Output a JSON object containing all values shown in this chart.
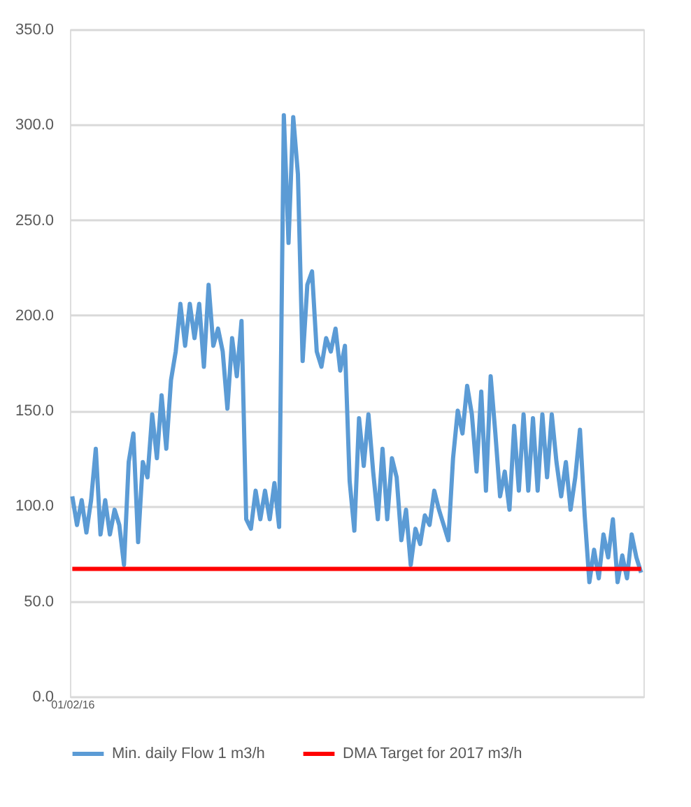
{
  "chart_data": {
    "type": "line",
    "categories": [
      "01/02/16",
      null,
      null,
      null,
      null,
      null,
      null,
      null,
      null,
      null,
      null,
      null,
      null,
      null,
      null,
      null,
      null,
      null,
      null,
      null,
      null,
      null,
      null,
      null,
      null,
      null,
      null,
      null,
      null,
      null,
      null,
      null,
      null,
      null,
      null,
      null,
      null,
      null,
      null,
      null,
      null,
      null,
      null,
      null,
      null,
      null,
      null,
      null,
      null,
      null,
      null,
      null,
      null,
      null,
      null,
      null,
      null,
      null,
      null,
      null,
      null,
      null,
      null,
      null,
      null,
      null,
      null,
      null,
      null,
      null,
      null,
      null,
      null,
      null,
      null,
      null,
      null,
      null,
      null,
      null,
      null,
      null,
      null,
      null,
      null,
      null,
      null,
      null,
      null,
      null,
      null,
      null,
      null,
      null,
      null,
      null,
      null,
      null,
      null,
      null,
      null,
      null,
      null,
      null,
      null,
      null,
      null,
      null,
      null,
      null,
      null,
      null,
      null,
      null,
      null,
      null,
      null,
      null,
      null,
      null,
      null,
      null
    ],
    "series": [
      {
        "name": "Min. daily Flow 1 m3/h",
        "color": "#5b9bd5",
        "values": [
          105,
          90,
          103,
          86,
          103,
          130,
          85,
          103,
          85,
          98,
          90,
          69,
          123,
          138,
          81,
          123,
          115,
          148,
          125,
          158,
          130,
          166,
          181,
          206,
          184,
          206,
          188,
          206,
          173,
          216,
          184,
          193,
          181,
          151,
          188,
          168,
          197,
          93,
          88,
          108,
          93,
          108,
          93,
          112,
          89,
          305,
          238,
          304,
          274,
          176,
          216,
          223,
          181,
          173,
          188,
          181,
          193,
          171,
          184,
          113,
          87,
          146,
          121,
          148,
          118,
          93,
          130,
          93,
          125,
          115,
          82,
          98,
          69,
          88,
          80,
          95,
          90,
          108,
          98,
          90,
          82,
          125,
          150,
          138,
          163,
          148,
          118,
          160,
          108,
          168,
          138,
          105,
          118,
          98,
          142,
          108,
          148,
          108,
          146,
          108,
          148,
          115,
          148,
          123,
          105,
          123,
          98,
          115,
          140,
          95,
          60,
          77,
          62,
          85,
          73,
          93,
          60,
          74,
          62,
          85,
          73,
          65
        ]
      },
      {
        "name": "DMA Target for 2017 m3/h",
        "color": "#ff0000",
        "values": [
          67,
          67,
          67,
          67,
          67,
          67,
          67,
          67,
          67,
          67,
          67,
          67,
          67,
          67,
          67,
          67,
          67,
          67,
          67,
          67,
          67,
          67,
          67,
          67,
          67,
          67,
          67,
          67,
          67,
          67,
          67,
          67,
          67,
          67,
          67,
          67,
          67,
          67,
          67,
          67,
          67,
          67,
          67,
          67,
          67,
          67,
          67,
          67,
          67,
          67,
          67,
          67,
          67,
          67,
          67,
          67,
          67,
          67,
          67,
          67,
          67,
          67,
          67,
          67,
          67,
          67,
          67,
          67,
          67,
          67,
          67,
          67,
          67,
          67,
          67,
          67,
          67,
          67,
          67,
          67,
          67,
          67,
          67,
          67,
          67,
          67,
          67,
          67,
          67,
          67,
          67,
          67,
          67,
          67,
          67,
          67,
          67,
          67,
          67,
          67,
          67,
          67,
          67,
          67,
          67,
          67,
          67,
          67,
          67,
          67,
          67,
          67,
          67,
          67,
          67,
          67,
          67,
          67,
          67,
          67,
          67,
          67
        ]
      }
    ],
    "ylim": [
      0,
      350
    ],
    "yticks": [
      {
        "value": 0,
        "label": "0.0"
      },
      {
        "value": 50,
        "label": "50.0"
      },
      {
        "value": 100,
        "label": "100.0"
      },
      {
        "value": 150,
        "label": "150.0"
      },
      {
        "value": 200,
        "label": "200.0"
      },
      {
        "value": 250,
        "label": "250.0"
      },
      {
        "value": 300,
        "label": "300.0"
      },
      {
        "value": 350,
        "label": "350.0"
      }
    ],
    "grid": "y",
    "legend": "bottom",
    "marker": "none",
    "line_style": "solid"
  }
}
